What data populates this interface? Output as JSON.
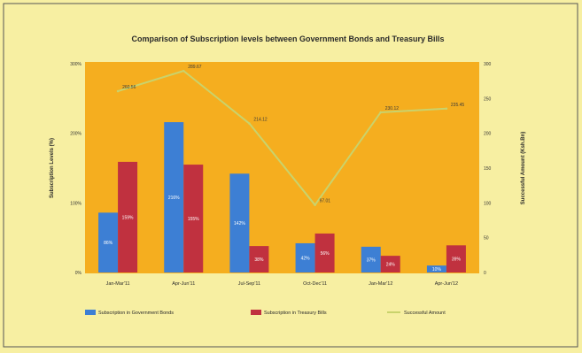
{
  "background_color": "#f7efa2",
  "chart_data": {
    "type": "bar",
    "title": "Comparison of Subscription levels between Government Bonds and Treasury Bills",
    "ylabel": "Subscription Levels (%)",
    "y2label": "Successful Amount (Ksh.Bn)",
    "ylim": [
      0,
      300
    ],
    "y2lim": [
      0,
      300
    ],
    "yticks": [
      {
        "value": 0,
        "label": "0%"
      },
      {
        "value": 100,
        "label": "100%"
      },
      {
        "value": 200,
        "label": "200%"
      },
      {
        "value": 300,
        "label": "300%"
      }
    ],
    "y2ticks": [
      {
        "value": 0,
        "label": "0"
      },
      {
        "value": 50,
        "label": "50"
      },
      {
        "value": 100,
        "label": "100"
      },
      {
        "value": 150,
        "label": "150"
      },
      {
        "value": 200,
        "label": "200"
      },
      {
        "value": 250,
        "label": "250"
      },
      {
        "value": 300,
        "label": "300"
      }
    ],
    "grid": false,
    "legend_position": "bottom",
    "plot_background": "#f5ae1f",
    "categories": [
      "Jan-Mar'11",
      "Apr-Jun'11",
      "Jul-Sep'11",
      "Oct-Dec'11",
      "Jan-Mar'12",
      "Apr-Jun'12"
    ],
    "series": [
      {
        "name": "Subscription in Government Bonds",
        "type": "bar",
        "axis": "left",
        "color": "#3d7fd4",
        "values": [
          86,
          216,
          142,
          42,
          37,
          10
        ],
        "labels": [
          "86%",
          "216%",
          "142%",
          "42%",
          "37%",
          "10%"
        ]
      },
      {
        "name": "Subscription in Treasury Bills",
        "type": "bar",
        "axis": "left",
        "color": "#c0313f",
        "values": [
          159,
          155,
          38,
          56,
          24,
          39
        ],
        "labels": [
          "159%",
          "155%",
          "38%",
          "56%",
          "24%",
          "39%"
        ]
      },
      {
        "name": "Successful Amount",
        "type": "line",
        "axis": "right",
        "color": "#c9d36c",
        "values": [
          260.56,
          289.67,
          214.12,
          97.01,
          230.12,
          235.45
        ],
        "labels": [
          "260.56",
          "289.67",
          "214.12",
          "97.01",
          "230.12",
          "235.45"
        ]
      }
    ]
  }
}
